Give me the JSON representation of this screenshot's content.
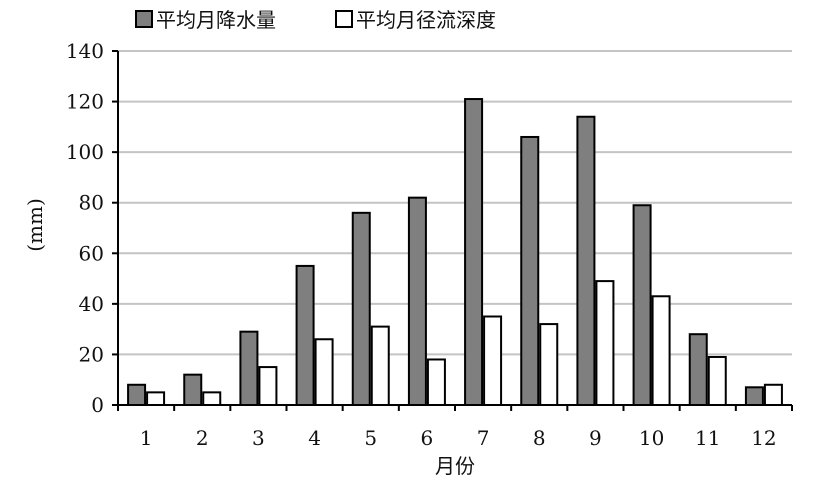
{
  "chart_data": {
    "type": "bar",
    "categories": [
      "1",
      "2",
      "3",
      "4",
      "5",
      "6",
      "7",
      "8",
      "9",
      "10",
      "11",
      "12"
    ],
    "series": [
      {
        "name": "平均月降水量",
        "values": [
          8,
          12,
          29,
          55,
          76,
          82,
          121,
          106,
          114,
          79,
          28,
          7
        ],
        "color": "#7f7f7f"
      },
      {
        "name": "平均月径流深度",
        "values": [
          5,
          5,
          15,
          26,
          31,
          18,
          35,
          32,
          49,
          43,
          19,
          8
        ],
        "color": "#ffffff"
      }
    ],
    "xlabel": "月份",
    "ylabel": "(mm)",
    "ylim": [
      0,
      140
    ],
    "yticks": [
      0,
      20,
      40,
      60,
      80,
      100,
      120,
      140
    ],
    "grid": true,
    "legend_position": "top-left"
  }
}
